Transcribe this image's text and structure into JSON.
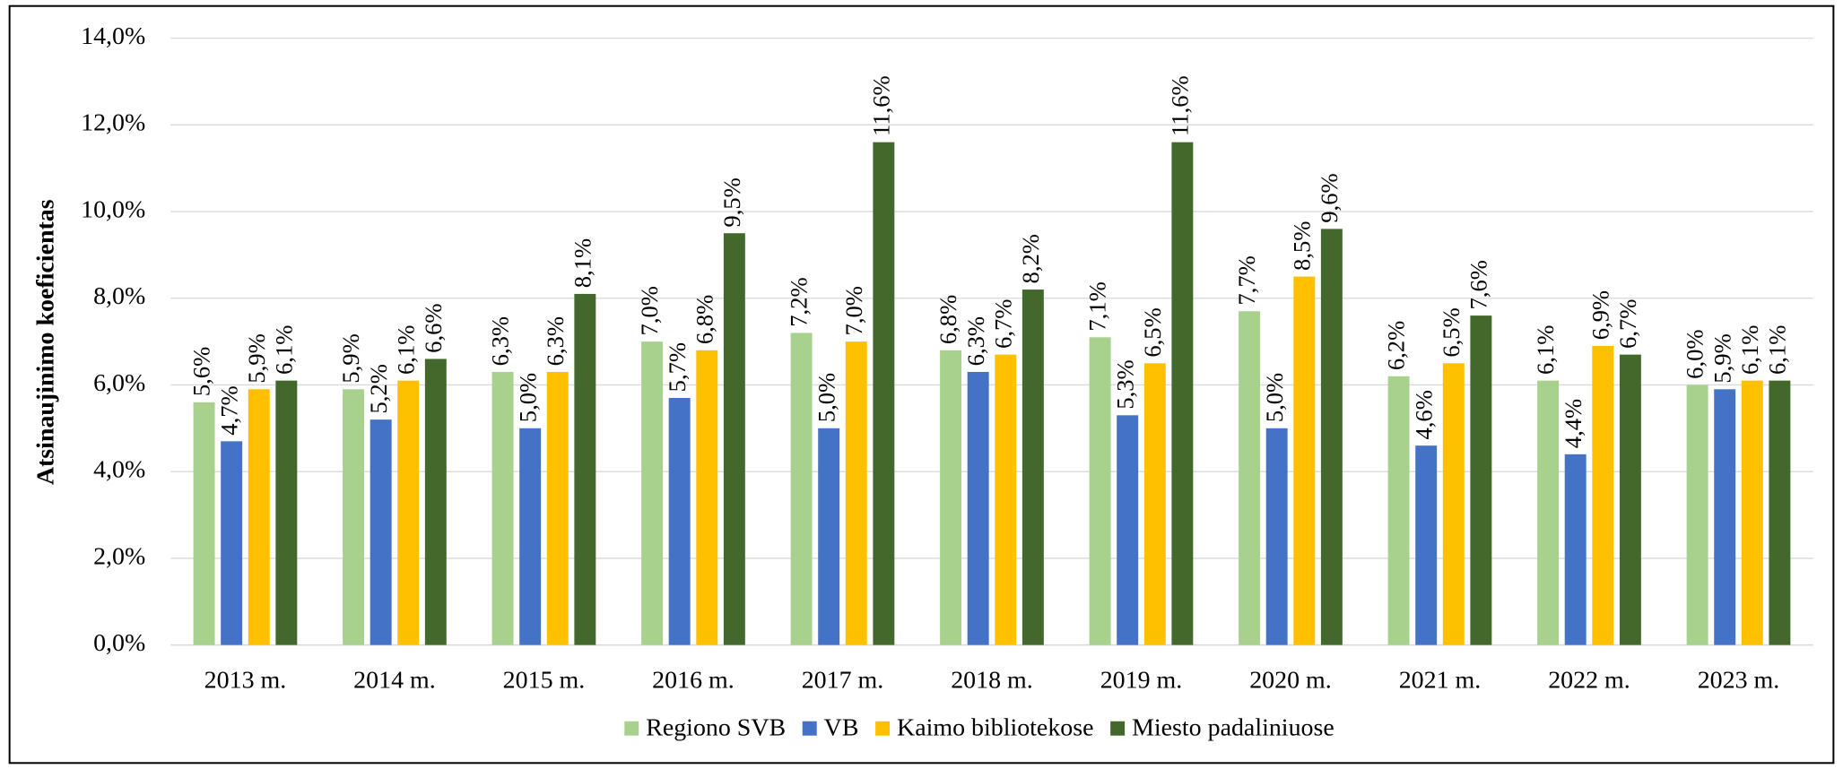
{
  "chart_data": {
    "type": "bar",
    "ylabel": "Atsinaujinimo koeficientas",
    "categories": [
      "2013 m.",
      "2014 m.",
      "2015 m.",
      "2016 m.",
      "2017 m.",
      "2018 m.",
      "2019 m.",
      "2020 m.",
      "2021 m.",
      "2022 m.",
      "2023 m."
    ],
    "series": [
      {
        "name": "Regiono SVB",
        "color": "#a9d18e",
        "values": [
          5.6,
          5.9,
          6.3,
          7.0,
          7.2,
          6.8,
          7.1,
          7.7,
          6.2,
          6.1,
          6.0
        ],
        "value_labels": [
          "5,6%",
          "5,9%",
          "6,3%",
          "7,0%",
          "7,2%",
          "6,8%",
          "7,1%",
          "7,7%",
          "6,2%",
          "6,1%",
          "6,0%"
        ]
      },
      {
        "name": "VB",
        "color": "#4472c4",
        "values": [
          4.7,
          5.2,
          5.0,
          5.7,
          5.0,
          6.3,
          5.3,
          5.0,
          4.6,
          4.4,
          5.9
        ],
        "value_labels": [
          "4,7%",
          "5,2%",
          "5,0%",
          "5,7%",
          "5,0%",
          "6,3%",
          "5,3%",
          "5,0%",
          "4,6%",
          "4,4%",
          "5,9%"
        ]
      },
      {
        "name": "Kaimo bibliotekose",
        "color": "#ffc000",
        "values": [
          5.9,
          6.1,
          6.3,
          6.8,
          7.0,
          6.7,
          6.5,
          8.5,
          6.5,
          6.9,
          6.1
        ],
        "value_labels": [
          "5,9%",
          "6,1%",
          "6,3%",
          "6,8%",
          "7,0%",
          "6,7%",
          "6,5%",
          "8,5%",
          "6,5%",
          "6,9%",
          "6,1%"
        ]
      },
      {
        "name": "Miesto padaliniuose",
        "color": "#43682b",
        "values": [
          6.1,
          6.6,
          8.1,
          9.5,
          11.6,
          8.2,
          11.6,
          9.6,
          7.6,
          6.7,
          6.1
        ],
        "value_labels": [
          "6,1%",
          "6,6%",
          "8,1%",
          "9,5%",
          "11,6%",
          "8,2%",
          "11,6%",
          "9,6%",
          "7,6%",
          "6,7%",
          "6,1%"
        ]
      }
    ],
    "ylim": [
      0,
      14
    ],
    "yticks": [
      {
        "value": 0,
        "label": "0,0%"
      },
      {
        "value": 2,
        "label": "2,0%"
      },
      {
        "value": 4,
        "label": "4,0%"
      },
      {
        "value": 6,
        "label": "6,0%"
      },
      {
        "value": 8,
        "label": "8,0%"
      },
      {
        "value": 10,
        "label": "10,0%"
      },
      {
        "value": 12,
        "label": "12,0%"
      },
      {
        "value": 14,
        "label": "14,0%"
      }
    ],
    "grid": true,
    "legend": "bottom"
  }
}
